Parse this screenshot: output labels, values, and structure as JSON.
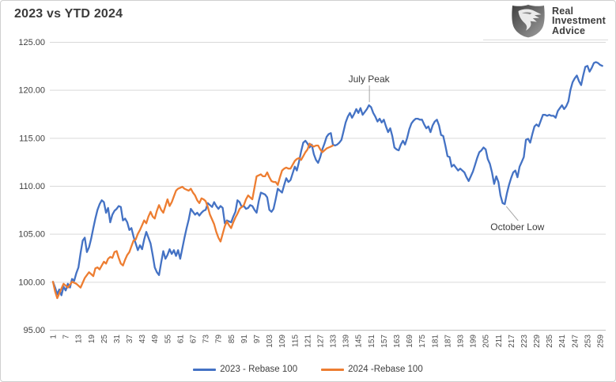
{
  "title": "2023 vs YTD 2024",
  "logo": {
    "line1": "Real",
    "line2": "Investment",
    "line3": "Advice"
  },
  "colors": {
    "blue": "#4472C4",
    "orange": "#ED7D31",
    "grid": "#D9D9D9",
    "axis": "#BFBFBF",
    "leader": "#A6A6A6",
    "label_text": "#404040"
  },
  "chart_data": {
    "type": "line",
    "title": "2023 vs YTD 2024",
    "xlabel": "",
    "ylabel": "",
    "ylim": [
      95,
      125
    ],
    "y_ticks": [
      95,
      100,
      105,
      110,
      115,
      120,
      125
    ],
    "y_tick_format": "2-decimals",
    "x_ticks": [
      1,
      7,
      13,
      19,
      25,
      31,
      37,
      43,
      49,
      55,
      61,
      67,
      73,
      79,
      85,
      91,
      97,
      103,
      109,
      115,
      121,
      127,
      133,
      139,
      145,
      151,
      157,
      163,
      169,
      175,
      181,
      187,
      193,
      199,
      205,
      211,
      217,
      223,
      229,
      235,
      241,
      247,
      253,
      259
    ],
    "grid": "horizontal-only",
    "legend_position": "bottom-center",
    "annotations": [
      {
        "text": "July Peak",
        "day": 150,
        "value": 118.4,
        "placement": "above"
      },
      {
        "text": "October Low",
        "day": 214,
        "value": 108.1,
        "placement": "below-right"
      }
    ],
    "series": [
      {
        "name": "2023 - Rebase 100",
        "color": "#4472C4",
        "start_day": 1,
        "values": [
          100.0,
          99.4,
          98.7,
          99.2,
          98.6,
          99.5,
          99.1,
          99.8,
          99.4,
          100.3,
          100.1,
          100.9,
          101.5,
          103.0,
          104.3,
          104.6,
          103.1,
          103.6,
          104.5,
          105.6,
          106.6,
          107.5,
          108.1,
          108.5,
          108.3,
          107.2,
          107.7,
          106.2,
          107.0,
          107.4,
          107.6,
          107.9,
          107.8,
          106.4,
          106.6,
          106.2,
          105.4,
          105.6,
          104.7,
          104.0,
          103.3,
          103.8,
          103.4,
          104.4,
          105.2,
          104.6,
          104.0,
          102.8,
          101.5,
          101.0,
          100.7,
          102.0,
          103.2,
          102.4,
          102.8,
          103.4,
          102.9,
          103.3,
          102.7,
          103.3,
          102.4,
          103.5,
          104.6,
          105.6,
          106.5,
          107.6,
          107.3,
          107.0,
          107.2,
          106.9,
          107.2,
          107.4,
          107.5,
          108.2,
          108.0,
          107.8,
          108.3,
          107.9,
          107.6,
          107.9,
          107.7,
          106.1,
          106.4,
          106.3,
          106.2,
          106.8,
          107.3,
          108.5,
          108.3,
          107.8,
          107.9,
          107.6,
          107.7,
          108.0,
          107.9,
          107.5,
          107.2,
          108.4,
          109.3,
          109.2,
          109.1,
          108.8,
          107.5,
          107.3,
          107.6,
          108.6,
          109.7,
          109.5,
          109.3,
          110.1,
          110.8,
          110.4,
          110.6,
          111.3,
          112.0,
          111.6,
          112.5,
          113.6,
          114.5,
          114.7,
          114.4,
          114.0,
          114.3,
          113.3,
          112.7,
          112.4,
          113.0,
          113.8,
          114.4,
          115.1,
          115.4,
          115.5,
          114.3,
          114.2,
          114.3,
          114.5,
          114.8,
          115.7,
          116.6,
          117.2,
          117.6,
          117.1,
          117.5,
          118.0,
          117.6,
          118.1,
          117.4,
          117.7,
          118.0,
          118.4,
          118.2,
          117.6,
          117.2,
          116.7,
          117.0,
          116.6,
          116.9,
          116.2,
          115.6,
          116.0,
          115.2,
          114.0,
          113.8,
          113.7,
          114.3,
          114.7,
          114.3,
          115.0,
          115.9,
          116.5,
          116.8,
          117.0,
          117.0,
          116.9,
          116.9,
          116.4,
          116.0,
          116.2,
          115.6,
          116.3,
          116.7,
          116.9,
          116.3,
          115.3,
          115.2,
          114.2,
          113.1,
          113.0,
          112.0,
          112.2,
          111.9,
          111.6,
          111.8,
          111.6,
          111.4,
          110.9,
          110.5,
          111.0,
          111.5,
          112.2,
          112.9,
          113.5,
          113.7,
          114.0,
          113.8,
          112.8,
          112.3,
          111.4,
          110.2,
          111.0,
          110.4,
          109.0,
          108.2,
          108.1,
          109.2,
          110.1,
          110.8,
          111.4,
          111.6,
          110.9,
          112.0,
          112.5,
          113.0,
          114.8,
          114.9,
          114.5,
          115.4,
          116.2,
          116.4,
          116.2,
          116.8,
          117.4,
          117.4,
          117.3,
          117.4,
          117.3,
          117.3,
          117.1,
          117.8,
          118.1,
          118.4,
          118.0,
          118.3,
          118.8,
          120.0,
          120.8,
          121.2,
          121.5,
          120.9,
          120.5,
          121.5,
          122.4,
          122.5,
          121.9,
          122.3,
          122.8,
          122.9,
          122.8,
          122.6,
          122.5
        ]
      },
      {
        "name": "2024 -Rebase 100",
        "color": "#ED7D31",
        "start_day": 1,
        "values": [
          100.0,
          99.0,
          98.3,
          98.8,
          99.3,
          99.8,
          99.6,
          99.4,
          99.7,
          100.0,
          99.9,
          99.8,
          99.6,
          99.4,
          99.9,
          100.4,
          100.7,
          101.0,
          100.8,
          100.6,
          101.4,
          101.5,
          101.3,
          101.7,
          102.1,
          101.9,
          102.4,
          102.6,
          102.5,
          103.1,
          103.2,
          102.5,
          101.9,
          101.7,
          102.3,
          102.8,
          103.1,
          103.7,
          104.3,
          104.4,
          105.0,
          105.4,
          105.9,
          106.4,
          106.1,
          106.8,
          107.3,
          106.8,
          106.6,
          107.4,
          108.0,
          107.5,
          107.2,
          107.9,
          108.6,
          107.9,
          108.3,
          108.9,
          109.5,
          109.7,
          109.8,
          109.9,
          109.7,
          109.6,
          109.5,
          109.7,
          109.3,
          109.0,
          108.5,
          108.2,
          108.7,
          108.6,
          108.4,
          107.8,
          107.0,
          106.5,
          106.0,
          105.2,
          104.6,
          104.2,
          105.0,
          105.8,
          106.3,
          105.9,
          105.6,
          106.2,
          106.7,
          107.1,
          107.6,
          107.8,
          108.0,
          108.6,
          109.0,
          108.8,
          108.6,
          109.8,
          111.0,
          111.1,
          111.2,
          111.0,
          111.0,
          111.4,
          110.9,
          110.5,
          110.4,
          110.4,
          110.1,
          110.9,
          111.6,
          111.8,
          111.9,
          111.8,
          111.8,
          112.2,
          112.6,
          112.8,
          112.9,
          112.7,
          113.1,
          113.5,
          113.8,
          114.4,
          114.2,
          114.1,
          114.2,
          114.2,
          113.8,
          113.5,
          113.7,
          113.9,
          114.0,
          114.1,
          114.2
        ]
      }
    ]
  },
  "legend": {
    "item1": "2023 - Rebase 100",
    "item2": "2024 -Rebase 100"
  }
}
